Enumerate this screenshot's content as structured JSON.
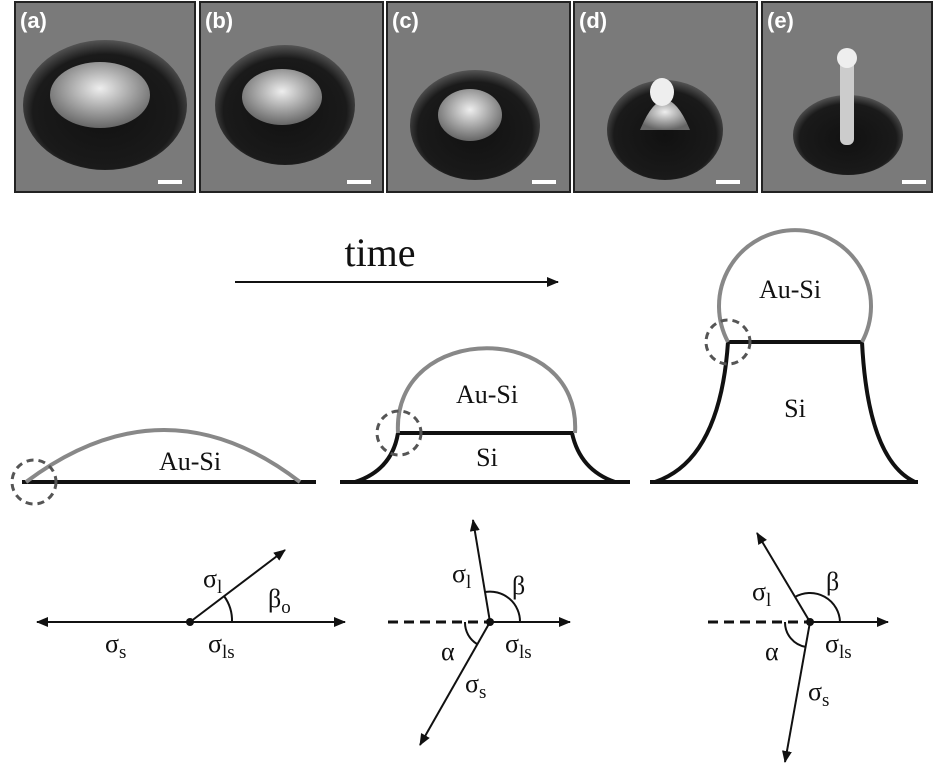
{
  "panels": [
    "(a)",
    "(b)",
    "(c)",
    "(d)",
    "(e)"
  ],
  "time": "time",
  "stages": [
    {
      "drop": "Au-Si"
    },
    {
      "drop": "Au-Si",
      "base": "Si"
    },
    {
      "drop": "Au-Si",
      "base": "Si"
    }
  ],
  "forces": [
    {
      "sigma_l": [
        "σ",
        "l"
      ],
      "beta": [
        "β",
        "o"
      ],
      "sigma_s": [
        "σ",
        "s"
      ],
      "sigma_ls": [
        "σ",
        "ls"
      ]
    },
    {
      "sigma_l": [
        "σ",
        "l"
      ],
      "beta": "β",
      "alpha": "α",
      "sigma_s": [
        "σ",
        "s"
      ],
      "sigma_ls": [
        "σ",
        "ls"
      ]
    },
    {
      "sigma_l": [
        "σ",
        "l"
      ],
      "beta": "β",
      "alpha": "α",
      "sigma_s": [
        "σ",
        "s"
      ],
      "sigma_ls": [
        "σ",
        "ls"
      ]
    }
  ]
}
